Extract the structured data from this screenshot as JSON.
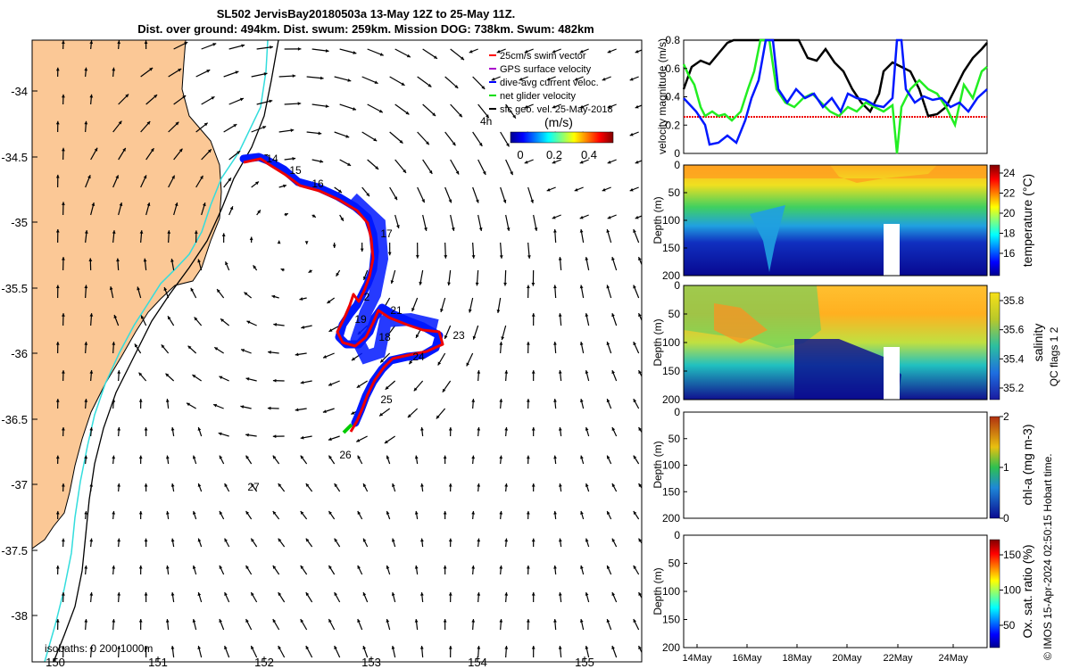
{
  "header": {
    "title_line1": "SL502 JervisBay20180503a 13-May 12Z to 25-May 11Z.",
    "title_line2": "Dist. over ground: 494km. Dist. swum: 259km. Mission DOG: 738km. Swum: 482km"
  },
  "map": {
    "lon_ticks": [
      "150",
      "151",
      "152",
      "153",
      "154",
      "155"
    ],
    "lat_ticks": [
      "-34",
      "-34.5",
      "-35",
      "-35.5",
      "-36",
      "-36.5",
      "-37",
      "-37.5",
      "-38"
    ],
    "legend": [
      "25cm/s swim vector",
      "GPS surface velocity",
      "dive-avg current veloc.",
      "net glider velocity",
      "sfc geo. vel. 25-May-2018"
    ],
    "legend_colors": [
      "#ff0000",
      "#aa00cc",
      "#0000ff",
      "#00dd00",
      "#000000"
    ],
    "time_label": "4h",
    "colorbar_unit": "(m/s)",
    "colorbar_ticks": [
      "0",
      "0.2",
      "0.4"
    ],
    "isobath_text": "isobaths: 0   200  1000m",
    "day_labels": [
      "14",
      "15",
      "16",
      "17",
      "18",
      "19",
      "2",
      "21",
      "23",
      "24",
      "25",
      "26",
      "27"
    ],
    "land_color": "#fbc896",
    "isobath_200_color": "#33dddd"
  },
  "panels": {
    "velocity": {
      "ylabel": "velocity magnitude (m/s)",
      "yticks": [
        "0",
        "0.2",
        "0.4",
        "0.6",
        "0.8"
      ]
    },
    "temperature": {
      "ylabel": "Depth (m)",
      "yticks": [
        "0",
        "50",
        "100",
        "150",
        "200"
      ],
      "cbar_label": "temperature (°C)",
      "cbar_ticks": [
        "16",
        "18",
        "20",
        "22",
        "24"
      ]
    },
    "salinity": {
      "ylabel": "Depth (m)",
      "yticks": [
        "0",
        "50",
        "100",
        "150",
        "200"
      ],
      "cbar_label": "salinity",
      "cbar_ticks": [
        "35.2",
        "35.4",
        "35.6",
        "35.8"
      ],
      "qc_label": "QC flags 1  2"
    },
    "chla": {
      "ylabel": "Depth (m)",
      "yticks": [
        "0",
        "50",
        "100",
        "150",
        "200"
      ],
      "cbar_label": "chl-a (mg m-3)",
      "cbar_ticks": [
        "0",
        "1",
        "2"
      ]
    },
    "oxygen": {
      "ylabel": "Depth (m)",
      "yticks": [
        "0",
        "50",
        "100",
        "150",
        "200"
      ],
      "cbar_label": "Ox. sat. ratio (%)",
      "cbar_ticks": [
        "50",
        "100",
        "150"
      ]
    },
    "xticks": [
      "14May",
      "16May",
      "18May",
      "20May",
      "22May",
      "24May"
    ]
  },
  "footer": {
    "credit": "© IMOS 15-Apr-2024 02:50:15 Hobart time."
  }
}
